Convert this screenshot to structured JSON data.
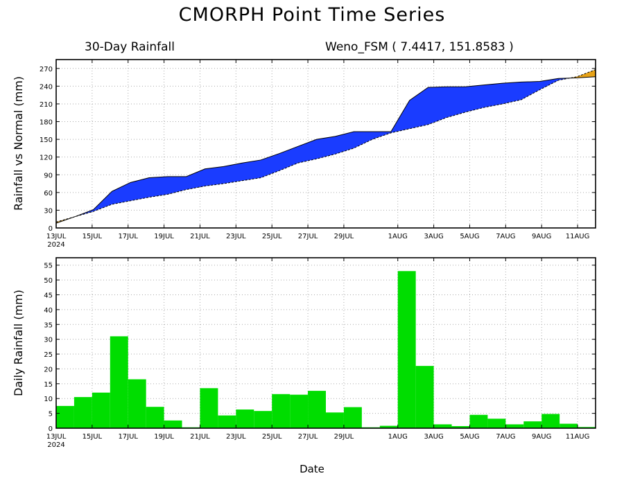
{
  "title": "CMORPH Point Time Series",
  "subtitle_left": "30-Day Rainfall",
  "subtitle_right": "Weno_FSM ( 7.4417, 151.8583 )",
  "xlabel": "Date",
  "year_label": "2024",
  "colors": {
    "surplus": "#1a3cff",
    "deficit": "#e8a317",
    "bars": "#00dd00",
    "frame": "#000000"
  },
  "chart_data": [
    {
      "type": "area",
      "title": "30-Day Rainfall",
      "ylabel": "Rainfall vs Normal (mm)",
      "x_tick_labels": [
        "13JUL",
        "15JUL",
        "17JUL",
        "19JUL",
        "21JUL",
        "23JUL",
        "25JUL",
        "27JUL",
        "29JUL",
        "1AUG",
        "3AUG",
        "5AUG",
        "7AUG",
        "9AUG",
        "11AUG"
      ],
      "x_tick_days": [
        0,
        2,
        4,
        6,
        8,
        10,
        12,
        14,
        16,
        19,
        21,
        23,
        25,
        27,
        29
      ],
      "ylim": [
        0,
        285
      ],
      "y_ticks": [
        0,
        30,
        60,
        90,
        120,
        150,
        180,
        210,
        240,
        270
      ],
      "grid": true,
      "series": [
        {
          "name": "Rainfall",
          "values": [
            8,
            19,
            31,
            62,
            77,
            85,
            87,
            87,
            100,
            104,
            110,
            115,
            126,
            138,
            150,
            155,
            163,
            163,
            163,
            216,
            238,
            239,
            239,
            242,
            245,
            247,
            248,
            253,
            254,
            256
          ]
        },
        {
          "name": "Normal",
          "values": [
            10,
            19,
            28,
            40,
            46,
            52,
            57,
            65,
            71,
            75,
            80,
            85,
            97,
            110,
            117,
            125,
            135,
            150,
            161,
            168,
            175,
            187,
            196,
            204,
            210,
            217,
            234,
            250,
            256,
            268
          ]
        }
      ]
    },
    {
      "type": "bar",
      "ylabel": "Daily Rainfall (mm)",
      "x_tick_labels": [
        "13JUL",
        "15JUL",
        "17JUL",
        "19JUL",
        "21JUL",
        "23JUL",
        "25JUL",
        "27JUL",
        "29JUL",
        "1AUG",
        "3AUG",
        "5AUG",
        "7AUG",
        "9AUG",
        "11AUG"
      ],
      "x_tick_days": [
        0,
        2,
        4,
        6,
        8,
        10,
        12,
        14,
        16,
        19,
        21,
        23,
        25,
        27,
        29
      ],
      "ylim": [
        0,
        57.5
      ],
      "y_ticks": [
        0,
        5,
        10,
        15,
        20,
        25,
        30,
        35,
        40,
        45,
        50,
        55
      ],
      "grid": true,
      "values": [
        7.5,
        10.5,
        12,
        31,
        16.5,
        7.2,
        2.6,
        0.3,
        13.5,
        4.3,
        6.3,
        5.8,
        11.5,
        11.3,
        12.6,
        5.3,
        7.1,
        0.3,
        0.8,
        53,
        21,
        1.3,
        0.7,
        4.5,
        3.2,
        1.3,
        2.3,
        4.8,
        1.5,
        0.4
      ]
    }
  ]
}
